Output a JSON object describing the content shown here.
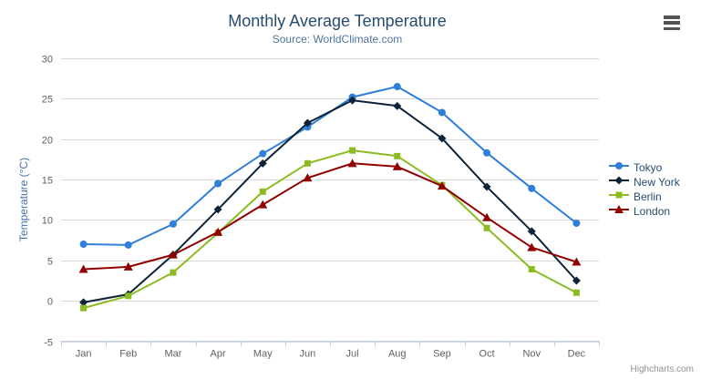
{
  "header": {
    "menu_icon": "hamburger-menu-icon"
  },
  "chart_data": {
    "type": "line",
    "title": "Monthly Average Temperature",
    "subtitle": "Source: WorldClimate.com",
    "xlabel": "",
    "ylabel": "Temperature (°C)",
    "categories": [
      "Jan",
      "Feb",
      "Mar",
      "Apr",
      "May",
      "Jun",
      "Jul",
      "Aug",
      "Sep",
      "Oct",
      "Nov",
      "Dec"
    ],
    "ylim": [
      -5,
      30
    ],
    "yticks": [
      -5,
      0,
      5,
      10,
      15,
      20,
      25,
      30
    ],
    "grid": true,
    "legend_position": "right",
    "series": [
      {
        "name": "Tokyo",
        "color": "#2f7ed8",
        "marker": "circle",
        "values": [
          7.0,
          6.9,
          9.5,
          14.5,
          18.2,
          21.5,
          25.2,
          26.5,
          23.3,
          18.3,
          13.9,
          9.6
        ]
      },
      {
        "name": "New York",
        "color": "#0d233a",
        "marker": "diamond",
        "values": [
          -0.2,
          0.8,
          5.7,
          11.3,
          17.0,
          22.0,
          24.8,
          24.1,
          20.1,
          14.1,
          8.6,
          2.5
        ]
      },
      {
        "name": "Berlin",
        "color": "#8bbc21",
        "marker": "square",
        "values": [
          -0.9,
          0.6,
          3.5,
          8.4,
          13.5,
          17.0,
          18.6,
          17.9,
          14.3,
          9.0,
          3.9,
          1.0
        ]
      },
      {
        "name": "London",
        "color": "#910000",
        "marker": "triangle",
        "values": [
          3.9,
          4.2,
          5.7,
          8.5,
          11.9,
          15.2,
          17.0,
          16.6,
          14.2,
          10.3,
          6.6,
          4.8
        ]
      }
    ],
    "credits": "Highcharts.com",
    "colors": {
      "title": "#274b6d",
      "subtitle": "#4d759e",
      "axis_title": "#4572a7",
      "axis_labels": "#606060",
      "gridline": "#d8d8d8",
      "axis_line": "#c0d0e0",
      "credits": "#909090"
    }
  }
}
